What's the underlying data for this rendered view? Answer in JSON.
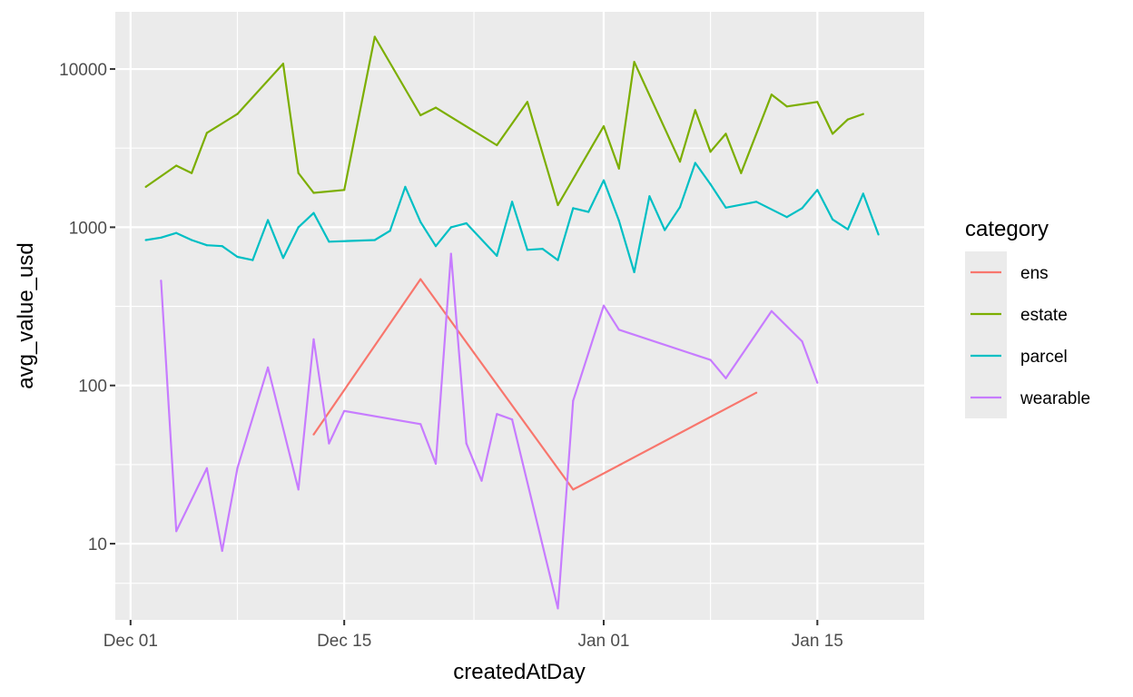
{
  "chart_data": {
    "type": "line",
    "xlabel": "createdAtDay",
    "ylabel": "avg_value_usd",
    "y_scale": "log10",
    "xlim": [
      "2021-11-30",
      "2022-01-22"
    ],
    "ylim": [
      3.3,
      23000
    ],
    "x_ticks": [
      {
        "label": "Dec 01",
        "date": "2021-12-01"
      },
      {
        "label": "Dec 15",
        "date": "2021-12-15"
      },
      {
        "label": "Jan 01",
        "date": "2022-01-01"
      },
      {
        "label": "Jan 15",
        "date": "2022-01-15"
      }
    ],
    "y_ticks": [
      {
        "label": "10",
        "value": 10
      },
      {
        "label": "100",
        "value": 100
      },
      {
        "label": "1000",
        "value": 1000
      },
      {
        "label": "10000",
        "value": 10000
      }
    ],
    "background": "#ebebeb",
    "grid": true,
    "legend": {
      "title": "category",
      "position": "right"
    },
    "series": [
      {
        "name": "ens",
        "color": "#f8766d",
        "points": [
          [
            "2021-12-13",
            49
          ],
          [
            "2021-12-20",
            470
          ],
          [
            "2021-12-30",
            22
          ],
          [
            "2022-01-11",
            90
          ]
        ]
      },
      {
        "name": "estate",
        "color": "#7cae00",
        "points": [
          [
            "2021-12-02",
            1800
          ],
          [
            "2021-12-04",
            2450
          ],
          [
            "2021-12-05",
            2200
          ],
          [
            "2021-12-06",
            3950
          ],
          [
            "2021-12-08",
            5200
          ],
          [
            "2021-12-11",
            10800
          ],
          [
            "2021-12-12",
            2200
          ],
          [
            "2021-12-13",
            1650
          ],
          [
            "2021-12-15",
            1720
          ],
          [
            "2021-12-17",
            16000
          ],
          [
            "2021-12-20",
            5100
          ],
          [
            "2021-12-21",
            5700
          ],
          [
            "2021-12-25",
            3300
          ],
          [
            "2021-12-27",
            6200
          ],
          [
            "2021-12-29",
            1380
          ],
          [
            "2022-01-01",
            4350
          ],
          [
            "2022-01-02",
            2350
          ],
          [
            "2022-01-03",
            11100
          ],
          [
            "2022-01-06",
            2600
          ],
          [
            "2022-01-07",
            5500
          ],
          [
            "2022-01-08",
            3000
          ],
          [
            "2022-01-09",
            3900
          ],
          [
            "2022-01-10",
            2200
          ],
          [
            "2022-01-12",
            6900
          ],
          [
            "2022-01-13",
            5800
          ],
          [
            "2022-01-15",
            6200
          ],
          [
            "2022-01-16",
            3900
          ],
          [
            "2022-01-17",
            4800
          ],
          [
            "2022-01-18",
            5200
          ]
        ]
      },
      {
        "name": "parcel",
        "color": "#00bfc4",
        "points": [
          [
            "2021-12-02",
            830
          ],
          [
            "2021-12-03",
            860
          ],
          [
            "2021-12-04",
            920
          ],
          [
            "2021-12-05",
            830
          ],
          [
            "2021-12-06",
            770
          ],
          [
            "2021-12-07",
            760
          ],
          [
            "2021-12-08",
            650
          ],
          [
            "2021-12-09",
            620
          ],
          [
            "2021-12-10",
            1110
          ],
          [
            "2021-12-11",
            640
          ],
          [
            "2021-12-12",
            1000
          ],
          [
            "2021-12-13",
            1230
          ],
          [
            "2021-12-14",
            810
          ],
          [
            "2021-12-17",
            830
          ],
          [
            "2021-12-18",
            950
          ],
          [
            "2021-12-19",
            1800
          ],
          [
            "2021-12-20",
            1080
          ],
          [
            "2021-12-21",
            760
          ],
          [
            "2021-12-22",
            1000
          ],
          [
            "2021-12-23",
            1060
          ],
          [
            "2021-12-25",
            660
          ],
          [
            "2021-12-26",
            1450
          ],
          [
            "2021-12-27",
            720
          ],
          [
            "2021-12-28",
            730
          ],
          [
            "2021-12-29",
            620
          ],
          [
            "2021-12-30",
            1320
          ],
          [
            "2021-12-31",
            1250
          ],
          [
            "2022-01-01",
            1980
          ],
          [
            "2022-01-02",
            1100
          ],
          [
            "2022-01-03",
            520
          ],
          [
            "2022-01-04",
            1570
          ],
          [
            "2022-01-05",
            960
          ],
          [
            "2022-01-06",
            1340
          ],
          [
            "2022-01-07",
            2550
          ],
          [
            "2022-01-08",
            1870
          ],
          [
            "2022-01-09",
            1330
          ],
          [
            "2022-01-11",
            1450
          ],
          [
            "2022-01-13",
            1160
          ],
          [
            "2022-01-14",
            1320
          ],
          [
            "2022-01-15",
            1720
          ],
          [
            "2022-01-16",
            1120
          ],
          [
            "2022-01-17",
            970
          ],
          [
            "2022-01-18",
            1630
          ],
          [
            "2022-01-19",
            900
          ]
        ]
      },
      {
        "name": "wearable",
        "color": "#c77cff",
        "points": [
          [
            "2021-12-03",
            460
          ],
          [
            "2021-12-04",
            12
          ],
          [
            "2021-12-06",
            30
          ],
          [
            "2021-12-07",
            9
          ],
          [
            "2021-12-08",
            30
          ],
          [
            "2021-12-10",
            130
          ],
          [
            "2021-12-12",
            22
          ],
          [
            "2021-12-13",
            196
          ],
          [
            "2021-12-14",
            43
          ],
          [
            "2021-12-15",
            69
          ],
          [
            "2021-12-20",
            57
          ],
          [
            "2021-12-21",
            32
          ],
          [
            "2021-12-22",
            680
          ],
          [
            "2021-12-23",
            43
          ],
          [
            "2021-12-24",
            25
          ],
          [
            "2021-12-25",
            66
          ],
          [
            "2021-12-26",
            61
          ],
          [
            "2021-12-29",
            3.9
          ],
          [
            "2021-12-30",
            80
          ],
          [
            "2022-01-01",
            320
          ],
          [
            "2022-01-02",
            225
          ],
          [
            "2022-01-08",
            145
          ],
          [
            "2022-01-09",
            111
          ],
          [
            "2022-01-12",
            295
          ],
          [
            "2022-01-14",
            190
          ],
          [
            "2022-01-15",
            104
          ]
        ]
      }
    ]
  }
}
